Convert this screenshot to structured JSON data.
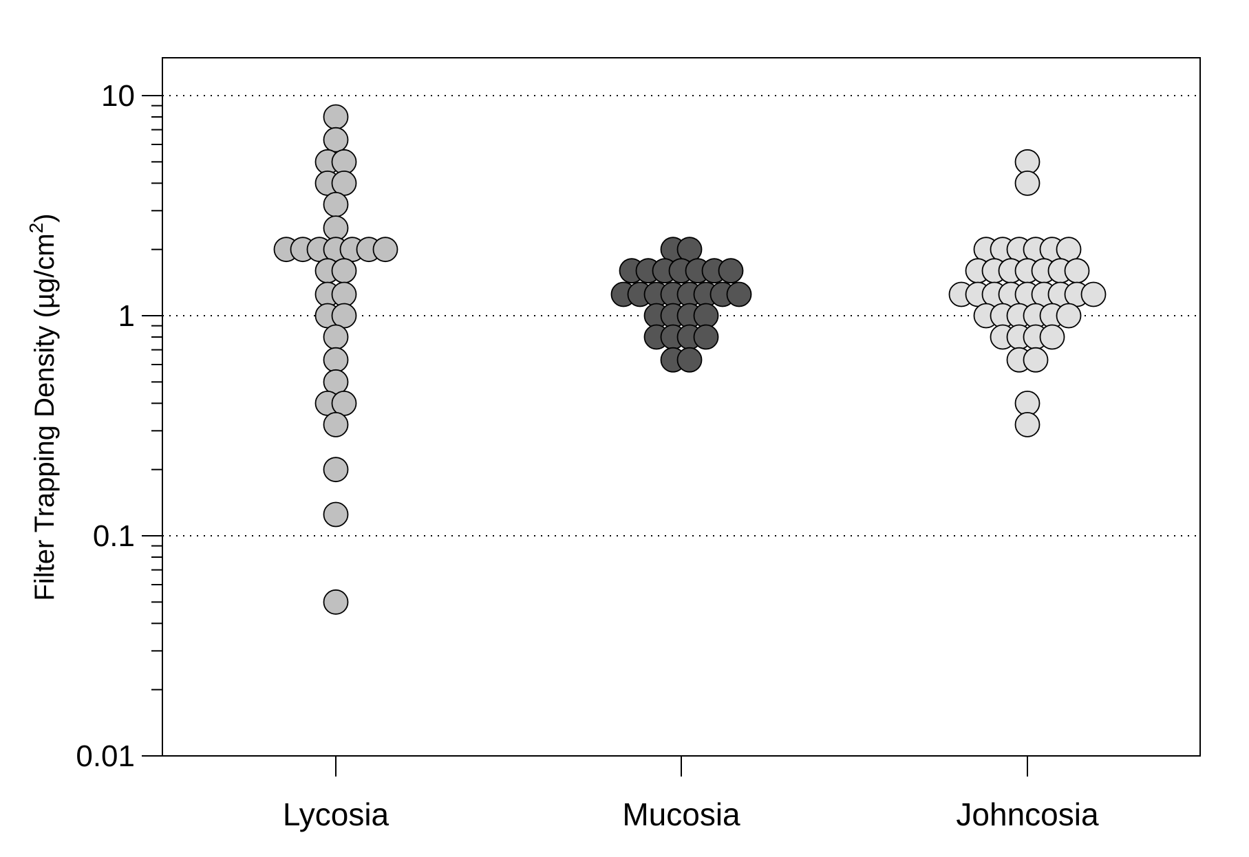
{
  "chart_data": {
    "type": "scatter",
    "subtype": "dot-plot",
    "title": "",
    "ylabel_main": "Filter Trapping Density (",
    "ylabel_unit": "µg/cm",
    "ylabel_sup": "2",
    "ylabel_close": ")",
    "yscale": "log",
    "ylim": [
      0.01,
      15
    ],
    "yticks": [
      {
        "value": 0.01,
        "label": "0.01"
      },
      {
        "value": 0.1,
        "label": "0.1"
      },
      {
        "value": 1,
        "label": "1"
      },
      {
        "value": 10,
        "label": "10"
      }
    ],
    "gridlines": [
      0.1,
      1,
      10
    ],
    "categories": [
      "Lycosia",
      "Mucosia",
      "Johncosia"
    ],
    "colors": {
      "Lycosia": "#c0c0c0",
      "Mucosia": "#555555",
      "Johncosia": "#e0e0e0",
      "stroke": "#000000",
      "grid": "#000000"
    },
    "series": [
      {
        "category": "Lycosia",
        "values": [
          8,
          6.3,
          5,
          5,
          4,
          4,
          3.2,
          2.5,
          2,
          2,
          2,
          2,
          2,
          2,
          2,
          1.6,
          1.6,
          1.25,
          1.25,
          1,
          1,
          0.8,
          0.63,
          0.5,
          0.4,
          0.4,
          0.32,
          0.2,
          0.125,
          0.05
        ]
      },
      {
        "category": "Mucosia",
        "values": [
          2,
          2,
          1.6,
          1.6,
          1.6,
          1.6,
          1.6,
          1.6,
          1.6,
          1.25,
          1.25,
          1.25,
          1.25,
          1.25,
          1.25,
          1.25,
          1.25,
          1,
          1,
          1,
          1,
          0.8,
          0.8,
          0.8,
          0.8,
          0.63,
          0.63
        ]
      },
      {
        "category": "Johncosia",
        "values": [
          5,
          4,
          2,
          2,
          2,
          2,
          2,
          2,
          1.6,
          1.6,
          1.6,
          1.6,
          1.6,
          1.6,
          1.6,
          1.25,
          1.25,
          1.25,
          1.25,
          1.25,
          1.25,
          1.25,
          1.25,
          1.25,
          1,
          1,
          1,
          1,
          1,
          1,
          0.8,
          0.8,
          0.8,
          0.8,
          0.63,
          0.63,
          0.4,
          0.32
        ]
      }
    ]
  }
}
